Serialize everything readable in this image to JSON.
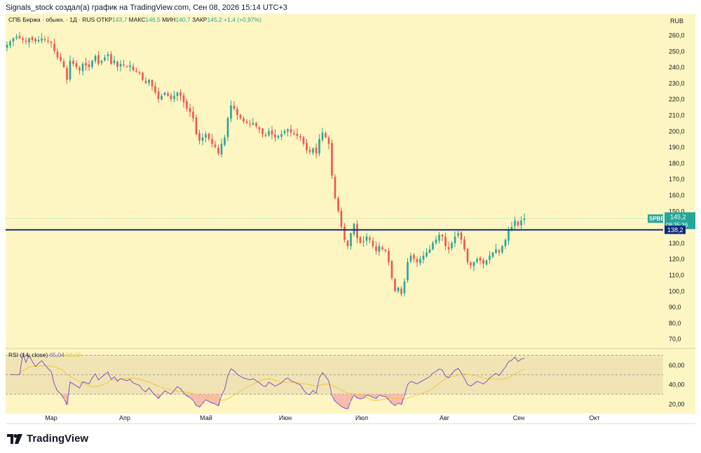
{
  "header": {
    "attribution": "Signals_stock создал(а) график на TradingView.com, Сен 08, 2026 15:14 UTC+3"
  },
  "legend": {
    "symbol_desc": "СПБ Биржа · обыкн. · 1Д · RUS",
    "open_label": "ОТКР",
    "open_value": "143,7",
    "high_label": "МАКС",
    "high_value": "146,5",
    "low_label": "МИН",
    "low_value": "140,7",
    "close_label": "ЗАКР",
    "close_value": "145,2",
    "change": "+1,4 (+0,97%)"
  },
  "currency": "RUB",
  "price_tag": {
    "ticker": "SPBE",
    "price": "145,2",
    "countdown": "08:35:36"
  },
  "level_tag": {
    "price": "138,2"
  },
  "rsi_legend": {
    "title": "RSI (14; close)",
    "rsi_value": "65,04",
    "ma_value": "58,43"
  },
  "brand": {
    "name": "TradingView"
  },
  "colors": {
    "background": "#fdf6c3",
    "rsi_band": "#f0e4b4",
    "up": "#26a69a",
    "down": "#ef5350",
    "level_line": "#0d2b7a",
    "rsi_line": "#7e57c2",
    "rsi_ma": "#f5c542",
    "price_tag": "#26a69a"
  },
  "chart_data": {
    "type": "candlestick",
    "y_ticks": [
      "260,0",
      "250,0",
      "240,0",
      "230,0",
      "220,0",
      "210,0",
      "200,0",
      "190,0",
      "180,0",
      "170,0",
      "160,0",
      "150,0",
      "140,0",
      "130,0",
      "120,0",
      "110,0",
      "100,0",
      "90,0",
      "80,0",
      "70,0"
    ],
    "ylim": [
      65,
      265
    ],
    "x_ticks": [
      "Мар",
      "Апр",
      "Май",
      "Июн",
      "Июл",
      "Авг",
      "Сен",
      "Окт"
    ],
    "horizontal_level": 138.2,
    "last_price": 145.2,
    "close_series": [
      254,
      256,
      258,
      259,
      258,
      257,
      256,
      258,
      257,
      256,
      257,
      258,
      257,
      256,
      255,
      250,
      246,
      244,
      240,
      232,
      244,
      242,
      240,
      238,
      242,
      241,
      240,
      244,
      247,
      242,
      244,
      246,
      248,
      242,
      244,
      240,
      242,
      241,
      240,
      241,
      238,
      237,
      236,
      232,
      230,
      232,
      228,
      224,
      220,
      222,
      224,
      222,
      220,
      222,
      224,
      222,
      218,
      214,
      212,
      208,
      198,
      194,
      196,
      198,
      195,
      192,
      190,
      186,
      192,
      196,
      208,
      216,
      214,
      210,
      208,
      206,
      205,
      204,
      205,
      203,
      201,
      198,
      197,
      200,
      198,
      196,
      197,
      198,
      200,
      201,
      199,
      198,
      197,
      196,
      192,
      188,
      187,
      189,
      186,
      195,
      199,
      196,
      192,
      172,
      158,
      150,
      140,
      132,
      128,
      136,
      142,
      133,
      130,
      131,
      134,
      132,
      128,
      125,
      128,
      126,
      125,
      118,
      108,
      100,
      102,
      98,
      106,
      118,
      122,
      120,
      118,
      120,
      122,
      124,
      126,
      130,
      132,
      135,
      134,
      128,
      126,
      130,
      134,
      136,
      132,
      126,
      118,
      116,
      118,
      120,
      119,
      117,
      119,
      122,
      124,
      126,
      124,
      128,
      132,
      138,
      140,
      144,
      141,
      144,
      145.2
    ],
    "rsi": {
      "y_ticks": [
        "60,00",
        "40,00",
        "20,00"
      ],
      "levels": [
        70,
        50,
        30
      ],
      "ylim": [
        10,
        76
      ]
    }
  }
}
